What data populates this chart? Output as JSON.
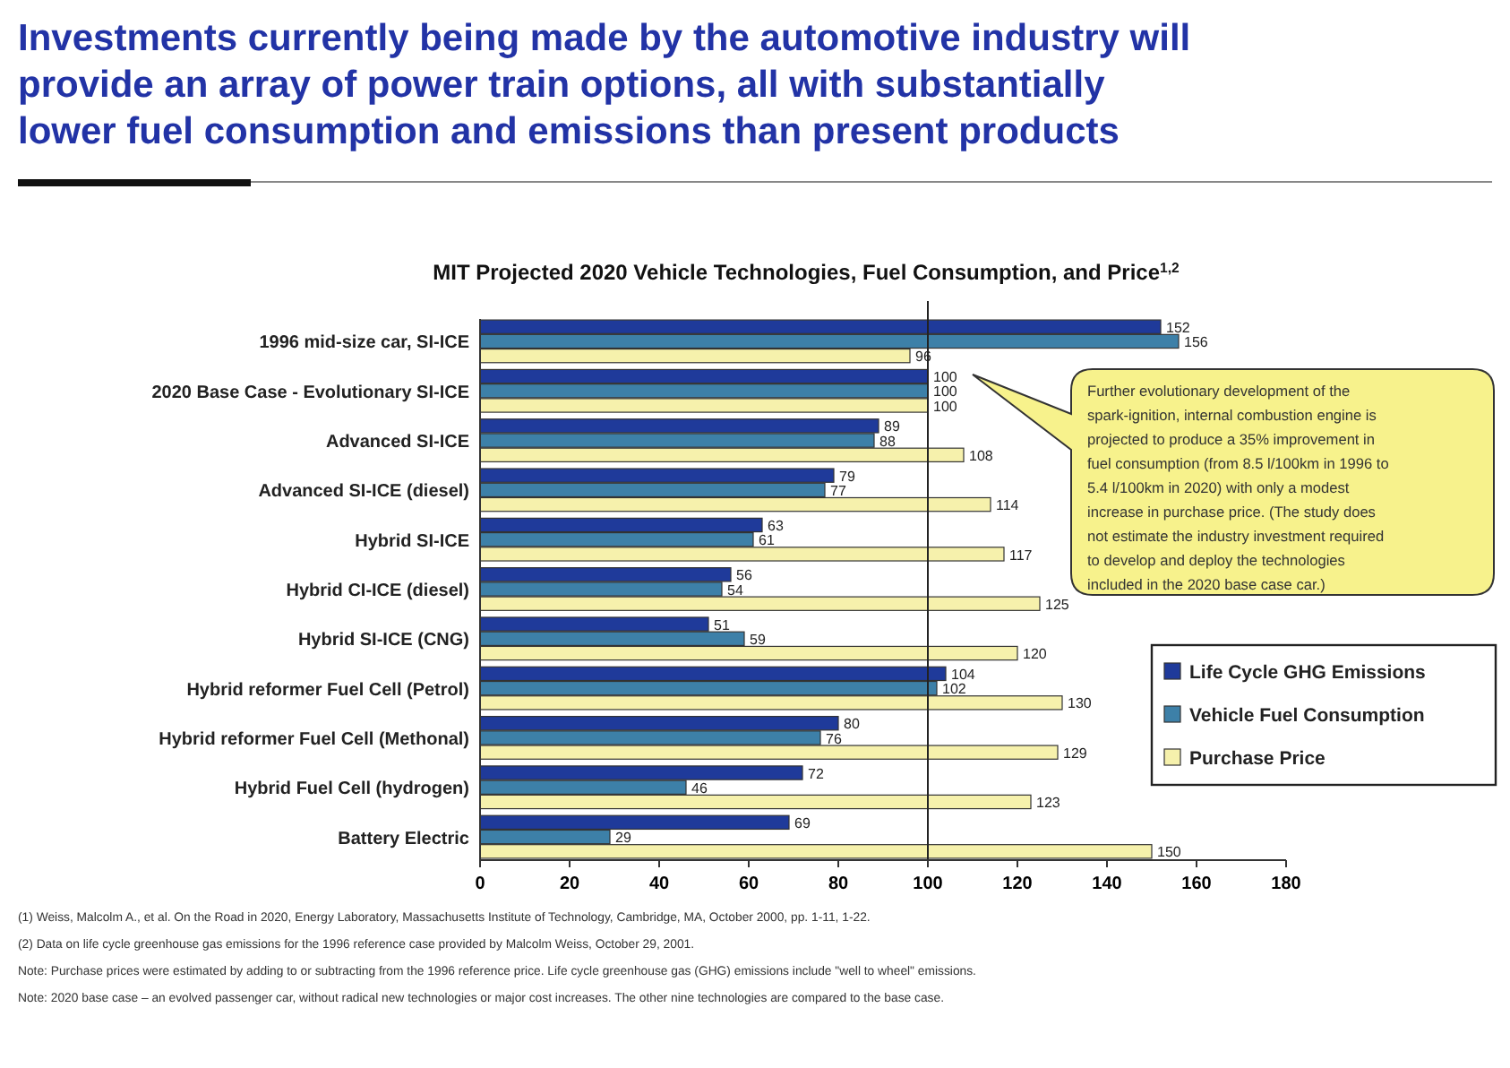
{
  "chart_data": {
    "type": "bar",
    "orientation": "horizontal",
    "title": "Investments currently being made by the automotive industry will provide an array of power train options, all with substantially lower fuel consumption and emissions than present products",
    "subtitle": "MIT Projected 2020 Vehicle Technologies, Fuel Consumption, and Price$^{1,2}$",
    "categories": [
      "1996 mid-size car, SI-ICE",
      "2020 Base Case - Evolutionary SI-ICE",
      "Advanced SI-ICE",
      "Advanced SI-ICE (diesel)",
      "Hybrid SI-ICE",
      "Hybrid CI-ICE (diesel)",
      "Hybrid SI-ICE (CNG)",
      "Hybrid reformer Fuel Cell (Petrol)",
      "Hybrid reformer Fuel Cell (Methonal)",
      "Hybrid Fuel Cell (hydrogen)",
      "Battery Electric"
    ],
    "series": [
      {
        "name": "Life Cycle GHG Emissions",
        "color": "#1f3a9a",
        "values": [
          152,
          100,
          89,
          79,
          63,
          56,
          51,
          104,
          80,
          72,
          69
        ]
      },
      {
        "name": "Vehicle Fuel Consumption",
        "color": "#3d80a8",
        "values": [
          156,
          100,
          88,
          77,
          61,
          54,
          59,
          102,
          76,
          46,
          29
        ]
      },
      {
        "name": "Purchase Price",
        "color": "#f6f1ac",
        "values": [
          96,
          100,
          108,
          114,
          117,
          125,
          120,
          130,
          129,
          123,
          150
        ]
      }
    ],
    "xlim": [
      0,
      180
    ],
    "xticks": [
      0,
      20,
      40,
      60,
      80,
      100,
      120,
      140,
      160,
      180
    ],
    "ref_lines": [
      {
        "axis": "x",
        "value": 100
      }
    ],
    "data_labels": true,
    "legend": "bottom right",
    "grid": false,
    "annotations": [
      "Further evolutionary development of the spark-ignition, internal combustion engine is projected to produce a 35% improvement in fuel consumption (from 8.5 l/100km in 1996 to 5.4 l/100km in 2020) with only a modest increase in purchase price. (The study does not estimate the industry investment required to develop and deploy the technologies included in the 2020 base case car.)",
      "(1) Weiss, Malcolm A., et al. On the Road in 2020, Energy Laboratory, Massachusetts Institute of Technology, Cambridge, MA, October 2000, pp. 1-11, 1-22.",
      "(2) Data on life cycle greenhouse gas emissions for the 1996 reference case provided by Malcolm Weiss, October 29, 2001.",
      "Note: Purchase prices were estimated by adding to or subtracting from the 1996 reference price. Life cycle greenhouse gas (GHG) emissions include \"well to wheel\" emissions.",
      "Note: 2020 base case – an evolved passenger car, without radical new technologies or major cost increases. The other nine technologies are compared to the base case."
    ]
  }
}
